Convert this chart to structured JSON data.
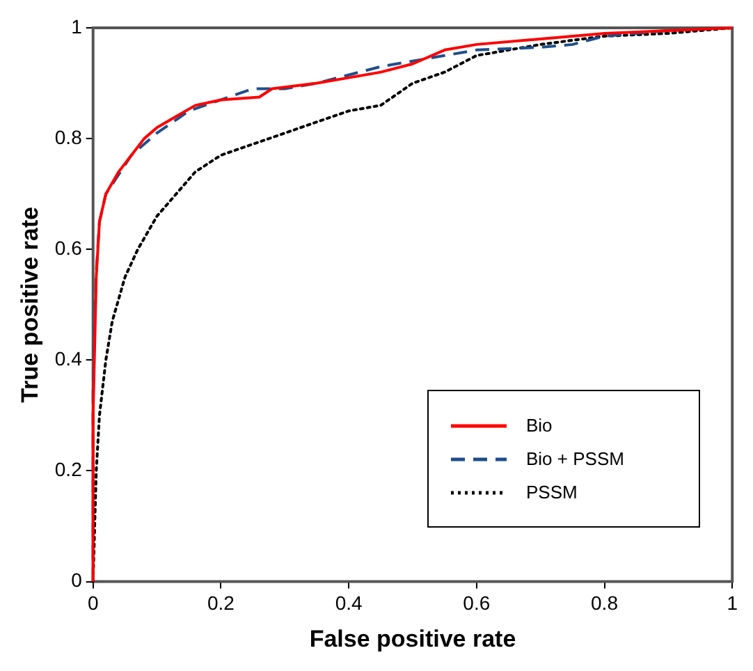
{
  "chart_data": {
    "type": "line",
    "xlabel": "False positive rate",
    "ylabel": "True positive rate",
    "xlim": [
      0,
      1
    ],
    "ylim": [
      0,
      1
    ],
    "xticks": [
      0,
      0.2,
      0.4,
      0.6,
      0.8,
      1
    ],
    "yticks": [
      0,
      0.2,
      0.4,
      0.6,
      0.8,
      1
    ],
    "grid": false,
    "legend": "bottom right",
    "marker": "none",
    "series": [
      {
        "name": "Bio",
        "color": "#ff0000",
        "line_style": "solid",
        "x": [
          0,
          0,
          0.005,
          0.01,
          0.02,
          0.03,
          0.04,
          0.06,
          0.08,
          0.1,
          0.13,
          0.16,
          0.2,
          0.26,
          0.28,
          0.35,
          0.4,
          0.45,
          0.5,
          0.55,
          0.6,
          0.7,
          0.8,
          0.9,
          1
        ],
        "values": [
          0,
          0.3,
          0.55,
          0.65,
          0.7,
          0.72,
          0.74,
          0.77,
          0.8,
          0.82,
          0.84,
          0.86,
          0.87,
          0.875,
          0.89,
          0.9,
          0.91,
          0.92,
          0.935,
          0.96,
          0.97,
          0.98,
          0.99,
          0.995,
          1
        ]
      },
      {
        "name": "Bio + PSSM",
        "color": "#1f4e8c",
        "line_style": "dashed",
        "x": [
          0,
          0,
          0.005,
          0.01,
          0.02,
          0.06,
          0.1,
          0.15,
          0.2,
          0.25,
          0.3,
          0.35,
          0.45,
          0.55,
          0.6,
          0.7,
          0.75,
          0.8,
          0.9,
          1
        ],
        "values": [
          0,
          0.35,
          0.56,
          0.65,
          0.7,
          0.77,
          0.81,
          0.85,
          0.87,
          0.89,
          0.89,
          0.9,
          0.93,
          0.95,
          0.96,
          0.965,
          0.97,
          0.985,
          0.995,
          1
        ]
      },
      {
        "name": "PSSM",
        "color": "#000000",
        "line_style": "dotted",
        "x": [
          0,
          0.005,
          0.01,
          0.02,
          0.03,
          0.05,
          0.07,
          0.1,
          0.13,
          0.16,
          0.2,
          0.25,
          0.3,
          0.35,
          0.4,
          0.45,
          0.5,
          0.55,
          0.6,
          0.7,
          0.8,
          0.9,
          1
        ],
        "values": [
          0,
          0.2,
          0.3,
          0.4,
          0.47,
          0.55,
          0.6,
          0.66,
          0.7,
          0.74,
          0.77,
          0.79,
          0.81,
          0.83,
          0.85,
          0.86,
          0.9,
          0.92,
          0.95,
          0.97,
          0.985,
          0.99,
          1
        ]
      }
    ]
  }
}
